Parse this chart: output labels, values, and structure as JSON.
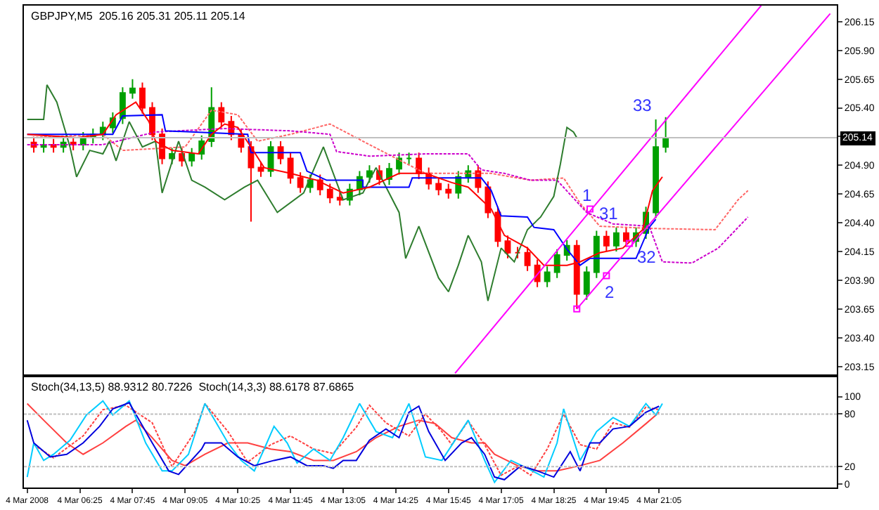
{
  "chart_data": [
    {
      "type": "candlestick",
      "title": "GBPJPY,M5  205.16 205.31 205.11 205.14",
      "tick_labels": "y",
      "x": [
        "2008-03-04T05:15",
        "2008-03-04T05:30",
        "2008-03-04T05:45",
        "2008-03-04T06:00",
        "2008-03-04T06:15",
        "2008-03-04T06:30",
        "2008-03-04T06:45",
        "2008-03-04T07:00",
        "2008-03-04T07:15",
        "2008-03-04T07:30",
        "2008-03-04T07:45",
        "2008-03-04T08:00",
        "2008-03-04T08:15",
        "2008-03-04T08:30",
        "2008-03-04T08:45",
        "2008-03-04T09:00",
        "2008-03-04T09:15",
        "2008-03-04T09:30",
        "2008-03-04T09:45",
        "2008-03-04T10:00",
        "2008-03-04T10:15",
        "2008-03-04T10:30",
        "2008-03-04T10:45",
        "2008-03-04T11:00",
        "2008-03-04T11:15",
        "2008-03-04T11:30",
        "2008-03-04T11:45",
        "2008-03-04T12:00",
        "2008-03-04T12:15",
        "2008-03-04T12:30",
        "2008-03-04T12:45",
        "2008-03-04T13:00",
        "2008-03-04T13:15",
        "2008-03-04T13:30",
        "2008-03-04T13:45",
        "2008-03-04T14:00",
        "2008-03-04T14:15",
        "2008-03-04T14:30",
        "2008-03-04T14:45",
        "2008-03-04T15:00",
        "2008-03-04T15:15",
        "2008-03-04T15:30",
        "2008-03-04T15:45",
        "2008-03-04T16:00",
        "2008-03-04T16:15",
        "2008-03-04T16:30",
        "2008-03-04T16:45",
        "2008-03-04T17:00",
        "2008-03-04T17:15",
        "2008-03-04T17:30",
        "2008-03-04T17:45",
        "2008-03-04T18:00",
        "2008-03-04T18:15",
        "2008-03-04T18:30",
        "2008-03-04T18:45",
        "2008-03-04T19:00",
        "2008-03-04T19:15",
        "2008-03-04T19:30",
        "2008-03-04T19:45",
        "2008-03-04T20:00",
        "2008-03-04T20:15",
        "2008-03-04T20:30",
        "2008-03-04T20:45",
        "2008-03-04T21:00",
        "2008-03-04T21:15"
      ],
      "ohlc": [
        [
          205.1,
          205.15,
          205.01,
          205.06
        ],
        [
          205.06,
          205.13,
          205.01,
          205.08
        ],
        [
          205.08,
          205.13,
          205.01,
          205.06
        ],
        [
          205.06,
          205.15,
          205.01,
          205.1
        ],
        [
          205.1,
          205.15,
          205.03,
          205.08
        ],
        [
          205.08,
          205.19,
          205.03,
          205.14
        ],
        [
          205.14,
          205.22,
          205.09,
          205.17
        ],
        [
          205.17,
          205.28,
          205.12,
          205.23
        ],
        [
          205.23,
          205.36,
          205.18,
          205.31
        ],
        [
          205.31,
          205.58,
          205.26,
          205.53
        ],
        [
          205.53,
          205.65,
          205.48,
          205.57
        ],
        [
          205.57,
          205.62,
          205.35,
          205.4
        ],
        [
          205.4,
          205.45,
          205.12,
          205.17
        ],
        [
          205.17,
          205.22,
          204.91,
          204.96
        ],
        [
          204.96,
          205.05,
          204.91,
          205.0
        ],
        [
          205.0,
          205.05,
          204.89,
          204.94
        ],
        [
          204.94,
          205.05,
          204.89,
          205.0
        ],
        [
          205.0,
          205.16,
          204.95,
          205.11
        ],
        [
          205.11,
          205.58,
          205.06,
          205.4
        ],
        [
          205.4,
          205.45,
          205.23,
          205.28
        ],
        [
          205.28,
          205.33,
          205.12,
          205.17
        ],
        [
          205.17,
          205.22,
          205.01,
          205.06
        ],
        [
          205.06,
          205.11,
          204.41,
          204.88
        ],
        [
          204.88,
          204.93,
          204.8,
          204.85
        ],
        [
          204.85,
          205.11,
          204.8,
          205.06
        ],
        [
          205.06,
          205.11,
          204.91,
          204.96
        ],
        [
          204.96,
          205.01,
          204.74,
          204.79
        ],
        [
          204.79,
          204.84,
          204.66,
          204.71
        ],
        [
          204.71,
          204.82,
          204.66,
          204.77
        ],
        [
          204.77,
          204.82,
          204.64,
          204.69
        ],
        [
          204.69,
          204.74,
          204.57,
          204.62
        ],
        [
          204.62,
          204.67,
          204.55,
          204.6
        ],
        [
          204.6,
          204.74,
          204.55,
          204.69
        ],
        [
          204.69,
          204.85,
          204.64,
          204.8
        ],
        [
          204.8,
          204.9,
          204.75,
          204.85
        ],
        [
          204.85,
          204.9,
          204.73,
          204.78
        ],
        [
          204.78,
          204.92,
          204.73,
          204.87
        ],
        [
          204.87,
          205.01,
          204.82,
          204.96
        ],
        [
          204.96,
          205.01,
          204.91,
          204.96
        ],
        [
          204.96,
          205.01,
          204.78,
          204.83
        ],
        [
          204.83,
          204.88,
          204.69,
          204.74
        ],
        [
          204.74,
          204.79,
          204.64,
          204.69
        ],
        [
          204.69,
          204.74,
          204.61,
          204.66
        ],
        [
          204.66,
          204.85,
          204.61,
          204.8
        ],
        [
          204.8,
          204.9,
          204.75,
          204.85
        ],
        [
          204.85,
          204.9,
          204.66,
          204.71
        ],
        [
          204.71,
          204.76,
          204.44,
          204.49
        ],
        [
          204.49,
          204.54,
          204.19,
          204.24
        ],
        [
          204.24,
          204.29,
          204.09,
          204.14
        ],
        [
          204.14,
          204.19,
          204.09,
          204.14
        ],
        [
          204.14,
          204.19,
          203.98,
          204.03
        ],
        [
          204.03,
          204.08,
          203.84,
          203.89
        ],
        [
          203.89,
          204.02,
          203.84,
          203.97
        ],
        [
          203.97,
          204.17,
          203.92,
          204.12
        ],
        [
          204.12,
          204.25,
          204.07,
          204.2
        ],
        [
          204.2,
          204.25,
          203.65,
          203.78
        ],
        [
          203.78,
          204.02,
          203.73,
          203.97
        ],
        [
          203.97,
          204.33,
          203.92,
          204.28
        ],
        [
          204.28,
          204.33,
          204.15,
          204.2
        ],
        [
          204.2,
          204.36,
          204.15,
          204.31
        ],
        [
          204.31,
          204.36,
          204.19,
          204.24
        ],
        [
          204.24,
          204.36,
          204.19,
          204.31
        ],
        [
          204.31,
          204.54,
          204.26,
          204.49
        ],
        [
          204.49,
          205.3,
          204.44,
          205.06
        ],
        [
          205.06,
          205.32,
          205.01,
          205.14
        ]
      ],
      "series": [
        {
          "type": "line",
          "color": "#ff6666",
          "line_style": "dotted",
          "x": [
            "2008-03-04T05:05",
            "2008-03-04T07:00",
            "2008-03-04T07:30",
            "2008-03-04T09:05",
            "2008-03-04T09:45",
            "2008-03-04T10:25",
            "2008-03-04T10:55",
            "2008-03-04T11:45",
            "2008-03-04T12:45",
            "2008-03-04T13:45",
            "2008-03-04T15:10",
            "2008-03-04T16:50",
            "2008-03-04T17:50",
            "2008-03-04T18:40",
            "2008-03-04T19:05",
            "2008-03-04T19:35",
            "2008-03-04T21:00",
            "2008-03-04T22:30",
            "2008-03-04T23:05",
            "2008-03-04T23:20"
          ],
          "values": [
            205.14,
            205.17,
            205.03,
            205.06,
            205.38,
            205.34,
            205.11,
            205.17,
            205.26,
            205.08,
            204.83,
            204.83,
            204.77,
            204.79,
            204.57,
            204.37,
            204.35,
            204.34,
            204.6,
            204.68
          ]
        },
        {
          "type": "line",
          "color": "#cc00cc",
          "line_style": "dotted",
          "x": [
            "2008-03-04T05:05",
            "2008-03-04T07:00",
            "2008-03-04T08:20",
            "2008-03-04T10:05",
            "2008-03-04T11:45",
            "2008-03-04T12:45",
            "2008-03-04T12:55",
            "2008-03-04T13:45",
            "2008-03-04T15:10",
            "2008-03-04T16:15",
            "2008-03-04T16:35",
            "2008-03-04T17:10",
            "2008-03-04T17:50",
            "2008-03-04T18:30",
            "2008-03-04T19:15",
            "2008-03-04T19:55",
            "2008-03-04T20:50",
            "2008-03-04T21:10",
            "2008-03-04T21:55",
            "2008-03-04T22:35",
            "2008-03-04T23:20"
          ],
          "values": [
            205.08,
            205.08,
            205.19,
            205.22,
            205.2,
            205.17,
            205.02,
            204.98,
            205.0,
            205.0,
            204.86,
            204.83,
            204.77,
            204.77,
            204.49,
            204.39,
            204.37,
            204.06,
            204.05,
            204.18,
            204.45
          ]
        },
        {
          "type": "line",
          "color": "#2e7d2e",
          "x": [
            "2008-03-04T05:05",
            "2008-03-04T05:30",
            "2008-03-04T05:35",
            "2008-03-04T05:50",
            "2008-03-04T06:10",
            "2008-03-04T06:20",
            "2008-03-04T06:40",
            "2008-03-04T07:00",
            "2008-03-04T07:10",
            "2008-03-04T07:20",
            "2008-03-04T07:40",
            "2008-03-04T08:00",
            "2008-03-04T08:20",
            "2008-03-04T08:30",
            "2008-03-04T08:55",
            "2008-03-04T09:15",
            "2008-03-04T09:35",
            "2008-03-04T10:05",
            "2008-03-04T10:35",
            "2008-03-04T10:55",
            "2008-03-04T11:25",
            "2008-03-04T12:05",
            "2008-03-04T12:35",
            "2008-03-04T13:05",
            "2008-03-04T13:35",
            "2008-03-04T13:55",
            "2008-03-04T14:30",
            "2008-03-04T14:40",
            "2008-03-04T15:00",
            "2008-03-04T15:30",
            "2008-03-04T15:45",
            "2008-03-04T16:00",
            "2008-03-04T16:15",
            "2008-03-04T16:35",
            "2008-03-04T16:45",
            "2008-03-04T17:05",
            "2008-03-04T17:25",
            "2008-03-04T17:45",
            "2008-03-04T18:05",
            "2008-03-04T18:25",
            "2008-03-04T18:35",
            "2008-03-04T18:45",
            "2008-03-04T18:55",
            "2008-03-04T19:00"
          ],
          "values": [
            205.3,
            205.3,
            205.6,
            205.45,
            205.06,
            204.8,
            205.03,
            205.0,
            205.11,
            204.94,
            205.28,
            205.06,
            205.11,
            204.66,
            205.11,
            204.77,
            204.71,
            204.6,
            204.71,
            204.77,
            204.49,
            204.66,
            205.06,
            204.6,
            204.66,
            204.88,
            204.49,
            204.09,
            204.37,
            203.92,
            203.8,
            204.03,
            204.29,
            204.06,
            203.72,
            204.18,
            204.06,
            204.34,
            204.45,
            204.63,
            204.91,
            205.23,
            205.19,
            205.14
          ]
        },
        {
          "type": "line",
          "color": "#0000ff",
          "x": [
            "2008-03-04T05:05",
            "2008-03-04T07:15",
            "2008-03-04T07:30",
            "2008-03-04T08:30",
            "2008-03-04T08:35",
            "2008-03-04T10:40",
            "2008-03-04T10:45",
            "2008-03-04T12:00",
            "2008-03-04T12:10",
            "2008-03-04T12:40",
            "2008-03-04T13:35",
            "2008-03-04T13:35",
            "2008-03-04T14:45",
            "2008-03-04T14:50",
            "2008-03-04T16:35",
            "2008-03-04T16:50",
            "2008-03-04T17:05",
            "2008-03-04T17:45",
            "2008-03-04T17:55",
            "2008-03-04T18:25",
            "2008-03-04T18:45",
            "2008-03-04T19:05",
            "2008-03-04T19:20",
            "2008-03-04T20:30",
            "2008-03-04T20:50",
            "2008-03-04T21:00"
          ],
          "values": [
            205.17,
            205.17,
            205.33,
            205.34,
            205.2,
            205.17,
            205.01,
            205.01,
            204.85,
            204.77,
            204.77,
            204.71,
            204.71,
            204.79,
            204.79,
            204.68,
            204.46,
            204.45,
            204.36,
            204.34,
            204.17,
            204.03,
            204.09,
            204.09,
            204.36,
            204.43
          ]
        },
        {
          "type": "line",
          "color": "#ff0000",
          "x": [
            "2008-03-04T05:05",
            "2008-03-04T06:20",
            "2008-03-04T07:00",
            "2008-03-04T07:20",
            "2008-03-04T07:50",
            "2008-03-04T08:10",
            "2008-03-04T08:20",
            "2008-03-04T08:45",
            "2008-03-04T09:25",
            "2008-03-04T09:45",
            "2008-03-04T10:05",
            "2008-03-04T10:25",
            "2008-03-04T10:45",
            "2008-03-04T11:05",
            "2008-03-04T11:45",
            "2008-03-04T12:25",
            "2008-03-04T13:05",
            "2008-03-04T13:45",
            "2008-03-04T14:30",
            "2008-03-04T15:10",
            "2008-03-04T15:50",
            "2008-03-04T16:15",
            "2008-03-04T16:50",
            "2008-03-04T17:10",
            "2008-03-04T17:45",
            "2008-03-04T18:10",
            "2008-03-04T18:45",
            "2008-03-04T19:05",
            "2008-03-04T19:35",
            "2008-03-04T20:10",
            "2008-03-04T20:40",
            "2008-03-04T20:55",
            "2008-03-04T21:10"
          ],
          "values": [
            205.17,
            205.14,
            205.17,
            205.34,
            205.45,
            205.28,
            205.11,
            205.03,
            205.0,
            205.17,
            205.26,
            205.23,
            205.06,
            204.88,
            204.83,
            204.77,
            204.66,
            204.71,
            204.83,
            204.83,
            204.75,
            204.71,
            204.52,
            204.29,
            204.18,
            204.03,
            204.03,
            204.06,
            204.14,
            204.18,
            204.34,
            204.68,
            204.8
          ]
        },
        {
          "type": "line",
          "color": "#ff00ff",
          "x": [
            "2008-03-04T15:55",
            "2008-03-04T23:40"
          ],
          "values": [
            203.09,
            206.29
          ]
        },
        {
          "type": "line",
          "color": "#ff00ff",
          "x": [
            "2008-03-04T19:00",
            "2008-03-05T01:25"
          ],
          "values": [
            203.65,
            206.22
          ]
        },
        {
          "type": "scatter",
          "color": "#ff00ff",
          "marker": "square",
          "x": [
            "2008-03-04T19:20",
            "2008-03-04T19:00",
            "2008-03-04T19:45",
            "2008-03-04T20:20"
          ],
          "values": [
            204.52,
            203.65,
            203.94,
            204.22
          ]
        }
      ],
      "xlim": [
        "2008-03-04T05:00",
        "2008-03-05T01:35"
      ],
      "ylim": [
        203.08,
        206.29
      ],
      "yticks": [
        203.15,
        {
          "value": 203.4,
          "label": "203.40"
        },
        203.65,
        {
          "value": 203.9,
          "label": "203.90"
        },
        204.15,
        {
          "value": 204.4,
          "label": "204.40"
        },
        204.65,
        {
          "value": 204.9,
          "label": "204.90"
        },
        {
          "value": 205.15,
          "label": null
        },
        {
          "value": 205.4,
          "label": "205.40"
        },
        205.65,
        {
          "value": 205.9,
          "label": "205.90"
        },
        206.15
      ],
      "ref_lines": [
        {
          "axis": "y",
          "value": 205.14,
          "label": "205.14",
          "color": "#c0c0c0"
        }
      ],
      "annotations": [
        {
          "text": "1",
          "x": "2008-03-04T19:20",
          "y": 204.52
        },
        {
          "text": "31",
          "x": "2008-03-04T19:45",
          "y": 204.33
        },
        {
          "text": "32",
          "x": "2008-03-04T20:25",
          "y": 204.22
        },
        {
          "text": "2",
          "x": "2008-03-04T19:45",
          "y": 203.94
        },
        {
          "text": "33",
          "x": "2008-03-04T21:15",
          "y": 205.32
        }
      ]
    },
    {
      "type": "line",
      "title": "Stoch(34,13,5) 88.9312 80.7226  Stoch(14,3,3) 88.6178 87.6865",
      "series": [
        {
          "color": "#ff4040",
          "x": [
            "2008-03-04T05:05",
            "2008-03-04T05:30",
            "2008-03-04T06:05",
            "2008-03-04T06:30",
            "2008-03-04T07:00",
            "2008-03-04T07:35",
            "2008-03-04T07:50",
            "2008-03-04T08:15",
            "2008-03-04T08:45",
            "2008-03-04T09:05",
            "2008-03-04T09:35",
            "2008-03-04T10:10",
            "2008-03-04T10:40",
            "2008-03-04T11:15",
            "2008-03-04T11:45",
            "2008-03-04T12:20",
            "2008-03-04T12:50",
            "2008-03-04T13:25",
            "2008-03-04T13:55",
            "2008-03-04T14:30",
            "2008-03-04T15:00",
            "2008-03-04T15:25",
            "2008-03-04T15:50",
            "2008-03-04T16:20",
            "2008-03-04T16:40",
            "2008-03-04T16:55",
            "2008-03-04T17:30",
            "2008-03-04T18:00",
            "2008-03-04T18:30",
            "2008-03-04T19:05",
            "2008-03-04T19:35",
            "2008-03-04T20:10",
            "2008-03-04T20:45",
            "2008-03-04T21:05"
          ],
          "values": [
            92,
            73,
            47,
            34,
            47,
            66,
            73,
            53,
            27,
            21,
            34,
            47,
            47,
            40,
            37,
            27,
            27,
            37,
            53,
            66,
            73,
            69,
            53,
            47,
            47,
            34,
            21,
            15,
            15,
            21,
            27,
            47,
            69,
            82
          ]
        },
        {
          "color": "#ff4040",
          "line_style": "dotted",
          "x": [
            "2008-03-04T05:15",
            "2008-03-04T05:45",
            "2008-03-04T06:30",
            "2008-03-04T07:00",
            "2008-03-04T07:35",
            "2008-03-04T08:15",
            "2008-03-04T08:45",
            "2008-03-04T09:20",
            "2008-03-04T09:35",
            "2008-03-04T10:10",
            "2008-03-04T10:40",
            "2008-03-04T11:15",
            "2008-03-04T11:45",
            "2008-03-04T12:20",
            "2008-03-04T12:50",
            "2008-03-04T13:25",
            "2008-03-04T13:45",
            "2008-03-04T14:10",
            "2008-03-04T14:45",
            "2008-03-04T15:10",
            "2008-03-04T15:35",
            "2008-03-04T15:50",
            "2008-03-04T16:15",
            "2008-03-04T16:40",
            "2008-03-04T17:05",
            "2008-03-04T17:30",
            "2008-03-04T17:50",
            "2008-03-04T18:15",
            "2008-03-04T18:40",
            "2008-03-04T19:05",
            "2008-03-04T19:30",
            "2008-03-04T19:55",
            "2008-03-04T20:20",
            "2008-03-04T20:45",
            "2008-03-04T21:05"
          ],
          "values": [
            45,
            30,
            55,
            85,
            90,
            70,
            20,
            60,
            92,
            60,
            25,
            45,
            55,
            40,
            35,
            65,
            90,
            70,
            55,
            80,
            60,
            45,
            72,
            45,
            10,
            20,
            10,
            40,
            80,
            45,
            40,
            70,
            65,
            88,
            85
          ]
        },
        {
          "color": "#00ccff",
          "x": [
            "2008-03-04T05:05",
            "2008-03-04T05:15",
            "2008-03-04T05:30",
            "2008-03-04T05:45",
            "2008-03-04T06:10",
            "2008-03-04T06:35",
            "2008-03-04T07:00",
            "2008-03-04T07:15",
            "2008-03-04T07:40",
            "2008-03-04T08:05",
            "2008-03-04T08:30",
            "2008-03-04T08:45",
            "2008-03-04T09:10",
            "2008-03-04T09:35",
            "2008-03-04T09:50",
            "2008-03-04T10:10",
            "2008-03-04T10:30",
            "2008-03-04T10:50",
            "2008-03-04T11:05",
            "2008-03-04T11:20",
            "2008-03-04T11:40",
            "2008-03-04T11:55",
            "2008-03-04T12:20",
            "2008-03-04T12:45",
            "2008-03-04T13:05",
            "2008-03-04T13:30",
            "2008-03-04T13:55",
            "2008-03-04T14:20",
            "2008-03-04T14:45",
            "2008-03-04T15:10",
            "2008-03-04T15:35",
            "2008-03-04T16:15",
            "2008-03-04T16:40",
            "2008-03-04T16:55",
            "2008-03-04T17:20",
            "2008-03-04T17:45",
            "2008-03-04T18:10",
            "2008-03-04T18:30",
            "2008-03-04T18:40",
            "2008-03-04T19:05",
            "2008-03-04T19:30",
            "2008-03-04T19:55",
            "2008-03-04T20:20",
            "2008-03-04T20:45",
            "2008-03-04T21:00",
            "2008-03-04T21:10"
          ],
          "values": [
            8,
            47,
            27,
            34,
            50,
            79,
            95,
            79,
            95,
            47,
            15,
            15,
            34,
            92,
            73,
            47,
            27,
            15,
            40,
            66,
            47,
            24,
            40,
            27,
            53,
            92,
            60,
            53,
            92,
            31,
            27,
            73,
            27,
            2,
            27,
            18,
            8,
            47,
            86,
            27,
            60,
            76,
            66,
            92,
            79,
            92
          ]
        },
        {
          "color": "#0000dd",
          "x": [
            "2008-03-04T05:05",
            "2008-03-04T05:15",
            "2008-03-04T05:40",
            "2008-03-04T06:05",
            "2008-03-04T06:30",
            "2008-03-04T06:55",
            "2008-03-04T07:15",
            "2008-03-04T07:40",
            "2008-03-04T08:15",
            "2008-03-04T08:40",
            "2008-03-04T08:55",
            "2008-03-04T09:30",
            "2008-03-04T09:35",
            "2008-03-04T10:00",
            "2008-03-04T10:25",
            "2008-03-04T10:50",
            "2008-03-04T11:20",
            "2008-03-04T11:45",
            "2008-03-04T12:10",
            "2008-03-04T12:35",
            "2008-03-04T12:50",
            "2008-03-04T13:05",
            "2008-03-04T13:25",
            "2008-03-04T13:45",
            "2008-03-04T14:10",
            "2008-03-04T14:30",
            "2008-03-04T14:45",
            "2008-03-04T15:00",
            "2008-03-04T15:15",
            "2008-03-04T15:40",
            "2008-03-04T16:05",
            "2008-03-04T16:20",
            "2008-03-04T16:40",
            "2008-03-04T16:55",
            "2008-03-04T17:10",
            "2008-03-04T17:35",
            "2008-03-04T18:00",
            "2008-03-04T18:25",
            "2008-03-04T18:50",
            "2008-03-04T19:05",
            "2008-03-04T19:20",
            "2008-03-04T19:35",
            "2008-03-04T19:55",
            "2008-03-04T20:20",
            "2008-03-04T20:45",
            "2008-03-04T21:05"
          ],
          "values": [
            73,
            47,
            31,
            34,
            47,
            66,
            86,
            93,
            47,
            15,
            11,
            40,
            47,
            47,
            31,
            21,
            27,
            31,
            21,
            21,
            18,
            27,
            27,
            50,
            63,
            53,
            82,
            89,
            60,
            27,
            47,
            53,
            34,
            8,
            5,
            21,
            15,
            8,
            37,
            15,
            47,
            47,
            63,
            66,
            82,
            89
          ]
        }
      ],
      "xlim": [
        "2008-03-04T05:00",
        "2008-03-05T01:35"
      ],
      "ylim": [
        -4,
        122
      ],
      "yticks": [
        0,
        20,
        80,
        100
      ],
      "xticks": [
        {
          "value": "2008-03-04T05:05",
          "label": "4 Mar 2008"
        },
        {
          "value": "2008-03-04T06:25",
          "label": "4 Mar 06:25"
        },
        {
          "value": "2008-03-04T07:45",
          "label": "4 Mar 07:45"
        },
        {
          "value": "2008-03-04T09:05",
          "label": "4 Mar 09:05"
        },
        {
          "value": "2008-03-04T10:25",
          "label": "4 Mar 10:25"
        },
        {
          "value": "2008-03-04T11:45",
          "label": "4 Mar 11:45"
        },
        {
          "value": "2008-03-04T13:05",
          "label": "4 Mar 13:05"
        },
        {
          "value": "2008-03-04T14:25",
          "label": "4 Mar 14:25"
        },
        {
          "value": "2008-03-04T15:45",
          "label": "4 Mar 15:45"
        },
        {
          "value": "2008-03-04T17:05",
          "label": "4 Mar 17:05"
        },
        {
          "value": "2008-03-04T18:25",
          "label": "4 Mar 18:25"
        },
        {
          "value": "2008-03-04T19:45",
          "label": "4 Mar 19:45"
        },
        {
          "value": "2008-03-04T21:05",
          "label": "4 Mar 21:05"
        }
      ],
      "ref_lines": [
        {
          "axis": "y",
          "value": 20,
          "color": "#c0c0c0",
          "line_style": "dotted"
        },
        {
          "axis": "y",
          "value": 80,
          "color": "#c0c0c0",
          "line_style": "dotted"
        }
      ]
    }
  ]
}
